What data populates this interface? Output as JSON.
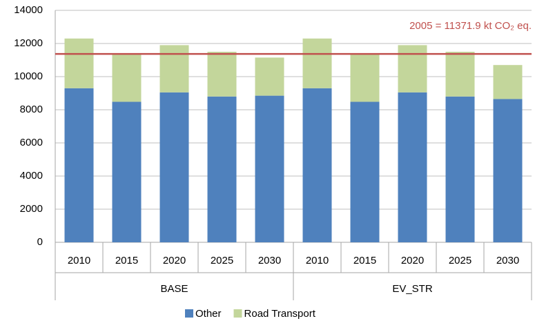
{
  "chart_data": {
    "type": "stacked_bar",
    "categories": [
      "2010",
      "2015",
      "2020",
      "2025",
      "2030",
      "2010",
      "2015",
      "2020",
      "2025",
      "2030"
    ],
    "groups": [
      "BASE",
      "EV_STR"
    ],
    "series": [
      {
        "name": "Other",
        "color": "#4f81bd",
        "values": [
          9300,
          8480,
          9050,
          8800,
          8850,
          9300,
          8480,
          9050,
          8800,
          8650
        ]
      },
      {
        "name": "Road Transport",
        "color": "#c3d69b",
        "values": [
          3000,
          2850,
          2850,
          2700,
          2300,
          3000,
          2850,
          2850,
          2700,
          2050
        ]
      }
    ],
    "reference_line": {
      "value": 11371.9,
      "label": "2005 = 11371.9 kt CO₂ eq.",
      "color": "#c0504d"
    },
    "ylim": [
      0,
      14000
    ],
    "yticks": [
      0,
      2000,
      4000,
      6000,
      8000,
      10000,
      12000,
      14000
    ],
    "grid": true,
    "legend": "bottom"
  }
}
